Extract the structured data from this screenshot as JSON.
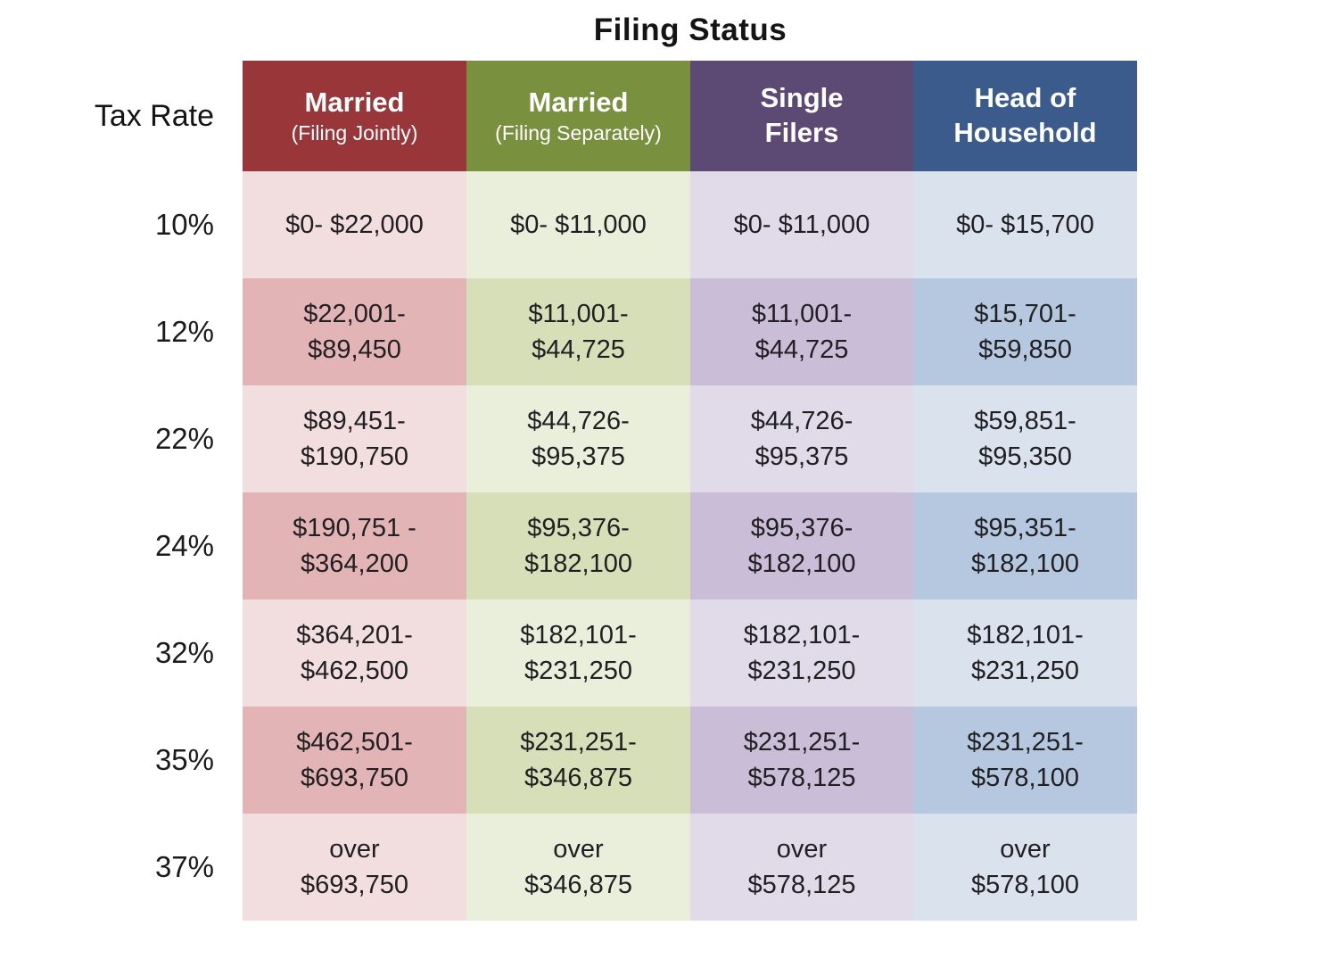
{
  "title": "Filing Status",
  "row_axis_label": "Tax Rate",
  "table": {
    "columns": [
      {
        "title": "Married",
        "subtitle": "(Filing Jointly)",
        "header_color": "#993639",
        "light_color": "#F2DEDF",
        "dark_color": "#E3B4B6"
      },
      {
        "title": "Married",
        "subtitle": "(Filing Separately)",
        "header_color": "#79913F",
        "light_color": "#EAEFDC",
        "dark_color": "#D6DFB8"
      },
      {
        "title": "Single",
        "subtitle": "Filers",
        "header_color": "#5D4A74",
        "light_color": "#E1DBE9",
        "dark_color": "#CABDD7"
      },
      {
        "title": "Head of",
        "subtitle": "Household",
        "header_color": "#3B5B8C",
        "light_color": "#DAE2EE",
        "dark_color": "#B5C8DF"
      }
    ],
    "rows": [
      {
        "rate": "10%",
        "cells": [
          {
            "line1": "$0- $22,000",
            "line2": ""
          },
          {
            "line1": "$0- $11,000",
            "line2": ""
          },
          {
            "line1": "$0- $11,000",
            "line2": ""
          },
          {
            "line1": "$0- $15,700",
            "line2": ""
          }
        ]
      },
      {
        "rate": "12%",
        "cells": [
          {
            "line1": "$22,001-",
            "line2": "$89,450"
          },
          {
            "line1": "$11,001-",
            "line2": "$44,725"
          },
          {
            "line1": "$11,001-",
            "line2": "$44,725"
          },
          {
            "line1": "$15,701-",
            "line2": "$59,850"
          }
        ]
      },
      {
        "rate": "22%",
        "cells": [
          {
            "line1": "$89,451-",
            "line2": "$190,750"
          },
          {
            "line1": "$44,726-",
            "line2": "$95,375"
          },
          {
            "line1": "$44,726-",
            "line2": "$95,375"
          },
          {
            "line1": "$59,851-",
            "line2": "$95,350"
          }
        ]
      },
      {
        "rate": "24%",
        "cells": [
          {
            "line1": "$190,751 -",
            "line2": "$364,200"
          },
          {
            "line1": "$95,376-",
            "line2": "$182,100"
          },
          {
            "line1": "$95,376-",
            "line2": "$182,100"
          },
          {
            "line1": "$95,351-",
            "line2": "$182,100"
          }
        ]
      },
      {
        "rate": "32%",
        "cells": [
          {
            "line1": "$364,201-",
            "line2": "$462,500"
          },
          {
            "line1": "$182,101-",
            "line2": "$231,250"
          },
          {
            "line1": "$182,101-",
            "line2": "$231,250"
          },
          {
            "line1": "$182,101-",
            "line2": "$231,250"
          }
        ]
      },
      {
        "rate": "35%",
        "cells": [
          {
            "line1": "$462,501-",
            "line2": "$693,750"
          },
          {
            "line1": "$231,251-",
            "line2": "$346,875"
          },
          {
            "line1": "$231,251-",
            "line2": "$578,125"
          },
          {
            "line1": "$231,251-",
            "line2": "$578,100"
          }
        ]
      },
      {
        "rate": "37%",
        "cells": [
          {
            "line1": "over",
            "line2": "$693,750"
          },
          {
            "line1": "over",
            "line2": "$346,875"
          },
          {
            "line1": "over",
            "line2": "$578,125"
          },
          {
            "line1": "over",
            "line2": "$578,100"
          }
        ]
      }
    ]
  },
  "chart_data": {
    "type": "table",
    "title": "Filing Status",
    "row_header": "Tax Rate",
    "columns": [
      "Married (Filing Jointly)",
      "Married (Filing Separately)",
      "Single Filers",
      "Head of Household"
    ],
    "rows": [
      {
        "tax_rate": "10%",
        "values": [
          "$0-$22,000",
          "$0-$11,000",
          "$0-$11,000",
          "$0-$15,700"
        ]
      },
      {
        "tax_rate": "12%",
        "values": [
          "$22,001-$89,450",
          "$11,001-$44,725",
          "$11,001-$44,725",
          "$15,701-$59,850"
        ]
      },
      {
        "tax_rate": "22%",
        "values": [
          "$89,451-$190,750",
          "$44,726-$95,375",
          "$44,726-$95,375",
          "$59,851-$95,350"
        ]
      },
      {
        "tax_rate": "24%",
        "values": [
          "$190,751-$364,200",
          "$95,376-$182,100",
          "$95,376-$182,100",
          "$95,351-$182,100"
        ]
      },
      {
        "tax_rate": "32%",
        "values": [
          "$364,201-$462,500",
          "$182,101-$231,250",
          "$182,101-$231,250",
          "$182,101-$231,250"
        ]
      },
      {
        "tax_rate": "35%",
        "values": [
          "$462,501-$693,750",
          "$231,251-$346,875",
          "$231,251-$578,125",
          "$231,251-$578,100"
        ]
      },
      {
        "tax_rate": "37%",
        "values": [
          "over $693,750",
          "over $346,875",
          "over $578,125",
          "over $578,100"
        ]
      }
    ],
    "header_colors": [
      "#993639",
      "#79913F",
      "#5D4A74",
      "#3B5B8C"
    ],
    "row_shading": "alternating light/dark per column hue, starting light"
  }
}
